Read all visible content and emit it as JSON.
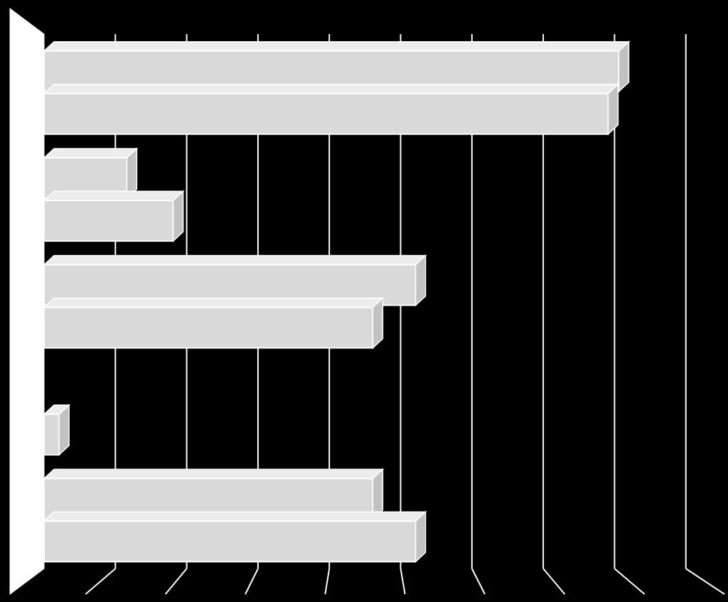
{
  "chart_data": {
    "type": "bar",
    "orientation": "horizontal",
    "three_d": true,
    "title": "",
    "xlabel": "",
    "ylabel": "",
    "grid": true,
    "xlim": [
      0,
      9
    ],
    "x_gridlines": [
      0,
      1,
      2,
      3,
      4,
      5,
      6,
      7,
      8,
      9
    ],
    "categories": [
      "",
      "",
      "",
      "",
      ""
    ],
    "series": [
      {
        "name": "",
        "values": [
          8.2,
          1.3,
          5.35,
          0,
          4.75
        ],
        "color": "#d9d9d9"
      },
      {
        "name": "",
        "values": [
          8.05,
          1.95,
          4.75,
          0.35,
          5.35
        ],
        "color": "#d9d9d9"
      }
    ],
    "colors": {
      "background": "#000000",
      "bar_fill": "#d9d9d9",
      "grid": "#ffffff",
      "wall": "#ffffff"
    }
  }
}
